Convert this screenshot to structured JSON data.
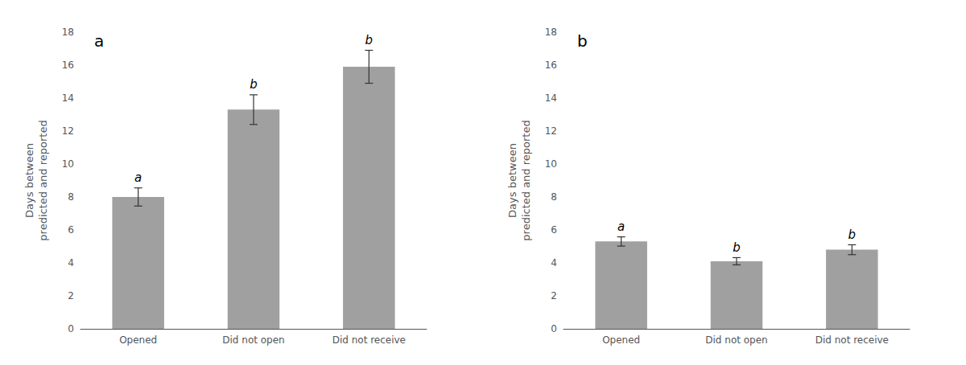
{
  "chart_data": [
    {
      "type": "bar",
      "title": "a",
      "categories": [
        "Opened",
        "Did not open",
        "Did not receive"
      ],
      "values": [
        8.0,
        13.3,
        15.9
      ],
      "errors": [
        0.55,
        0.9,
        1.0
      ],
      "annotations": [
        "a",
        "b",
        "b"
      ],
      "color": "#a0a0a0",
      "ylim": [
        0,
        18
      ],
      "yticks": [
        0,
        2,
        4,
        6,
        8,
        10,
        12,
        14,
        16,
        18
      ],
      "ylabel": "Days between\npredicted and reported",
      "grid": false
    },
    {
      "type": "bar",
      "title": "b",
      "categories": [
        "Opened",
        "Did not open",
        "Did not receive"
      ],
      "values": [
        5.3,
        4.1,
        4.8
      ],
      "errors": [
        0.28,
        0.22,
        0.3
      ],
      "annotations": [
        "a",
        "b",
        "b"
      ],
      "color": "#a0a0a0",
      "ylim": [
        0,
        18
      ],
      "yticks": [
        0,
        2,
        4,
        6,
        8,
        10,
        12,
        14,
        16,
        18
      ],
      "ylabel": "Days between\npredicted and reported",
      "grid": false
    }
  ]
}
